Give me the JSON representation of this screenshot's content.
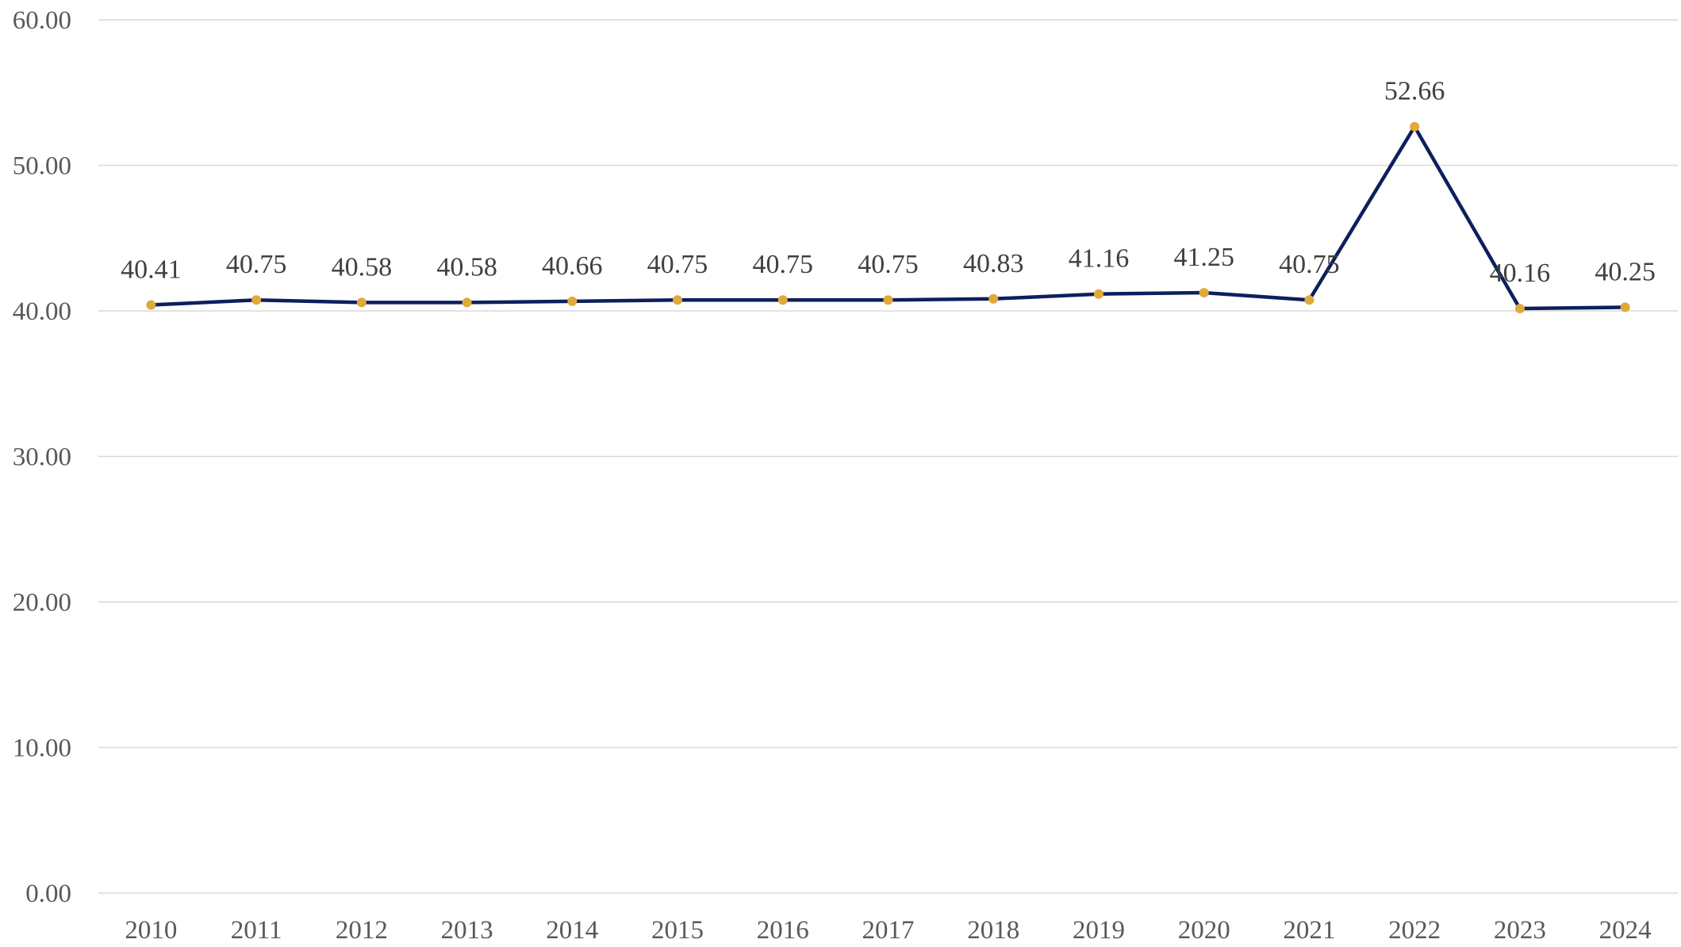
{
  "chart_data": {
    "type": "line",
    "title": "",
    "xlabel": "",
    "ylabel": "",
    "ylim": [
      0,
      60
    ],
    "y_ticks": [
      "0.00",
      "10.00",
      "20.00",
      "30.00",
      "40.00",
      "50.00",
      "60.00"
    ],
    "grid": true,
    "legend": "none",
    "categories": [
      "2010",
      "2011",
      "2012",
      "2013",
      "2014",
      "2015",
      "2016",
      "2017",
      "2018",
      "2019",
      "2020",
      "2021",
      "2022",
      "2023",
      "2024"
    ],
    "series": [
      {
        "values": [
          40.41,
          40.75,
          40.58,
          40.58,
          40.66,
          40.75,
          40.75,
          40.75,
          40.83,
          41.16,
          41.25,
          40.75,
          52.66,
          40.16,
          40.25
        ],
        "labels": [
          "40.41",
          "40.75",
          "40.58",
          "40.58",
          "40.66",
          "40.75",
          "40.75",
          "40.75",
          "40.83",
          "41.16",
          "41.25",
          "40.75",
          "52.66",
          "40.16",
          "40.25"
        ],
        "line_color": "#0d1f5c",
        "marker_color": "#e0a93b"
      }
    ],
    "colors": {
      "grid": "#d9d9d9",
      "tick_text": "#595959",
      "label_text": "#404040"
    }
  }
}
